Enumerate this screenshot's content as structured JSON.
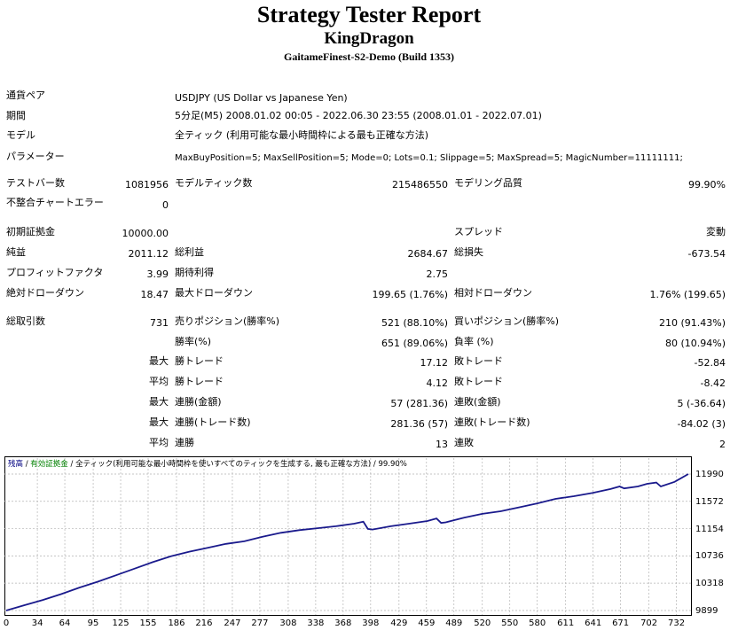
{
  "header": {
    "title": "Strategy Tester Report",
    "ea_name": "KingDragon",
    "server": "GaitameFinest-S2-Demo (Build 1353)"
  },
  "info": {
    "symbol_label": "通貨ペア",
    "symbol_value": "USDJPY (US Dollar vs Japanese Yen)",
    "period_label": "期間",
    "period_value": "5分足(M5) 2008.01.02 00:05 - 2022.06.30 23:55 (2008.01.01 - 2022.07.01)",
    "model_label": "モデル",
    "model_value": "全ティック (利用可能な最小時間枠による最も正確な方法)",
    "params_label": "パラメーター",
    "params_value": "MaxBuyPosition=5; MaxSellPosition=5; Mode=0; Lots=0.1; Slippage=5; MaxSpread=5; MagicNumber=11111111;"
  },
  "bars": {
    "bars_label": "テストバー数",
    "bars_value": "1081956",
    "ticks_label": "モデルティック数",
    "ticks_value": "215486550",
    "quality_label": "モデリング品質",
    "quality_value": "99.90%",
    "mismatch_label": "不整合チャートエラー",
    "mismatch_value": "0"
  },
  "results": {
    "deposit_label": "初期証拠金",
    "deposit_value": "10000.00",
    "spread_label": "スプレッド",
    "spread_value": "変動",
    "net_label": "純益",
    "net_value": "2011.12",
    "gross_profit_label": "総利益",
    "gross_profit_value": "2684.67",
    "gross_loss_label": "総損失",
    "gross_loss_value": "-673.54",
    "pf_label": "プロフィットファクタ",
    "pf_value": "3.99",
    "expected_label": "期待利得",
    "expected_value": "2.75",
    "abs_dd_label": "絶対ドローダウン",
    "abs_dd_value": "18.47",
    "max_dd_label": "最大ドローダウン",
    "max_dd_value": "199.65 (1.76%)",
    "rel_dd_label": "相対ドローダウン",
    "rel_dd_value": "1.76% (199.65)"
  },
  "trades": {
    "total_label": "総取引数",
    "total_value": "731",
    "short_label": "売りポジション(勝率%)",
    "short_value": "521 (88.10%)",
    "long_label": "買いポジション(勝率%)",
    "long_value": "210 (91.43%)",
    "win_label": "勝率(%)",
    "win_value": "651 (89.06%)",
    "loss_label": "負率 (%)",
    "loss_value": "80 (10.94%)",
    "max_word": "最大",
    "avg_word": "平均",
    "largest_win_label": "勝トレード",
    "largest_win_value": "17.12",
    "largest_loss_label": "敗トレード",
    "largest_loss_value": "-52.84",
    "avg_win_label": "勝トレード",
    "avg_win_value": "4.12",
    "avg_loss_label": "敗トレード",
    "avg_loss_value": "-8.42",
    "cons_wins_label": "連勝(金額)",
    "cons_wins_value": "57 (281.36)",
    "cons_losses_label": "連敗(金額)",
    "cons_losses_value": "5 (-36.64)",
    "cons_profit_label": "連勝(トレード数)",
    "cons_profit_value": "281.36 (57)",
    "cons_loss_label": "連敗(トレード数)",
    "cons_loss_value": "-84.02 (3)",
    "avg_cons_wins_label": "連勝",
    "avg_cons_wins_value": "13",
    "avg_cons_losses_label": "連敗",
    "avg_cons_losses_value": "2"
  },
  "colors": {
    "balance_line": "#1a1a8c",
    "equity_legend": "#008000",
    "grid": "#b4b4b4"
  },
  "chart_data": {
    "type": "line",
    "legend": {
      "balance": "残高",
      "sep1": " / ",
      "equity": "有効証拠金",
      "sep2": " / ",
      "model": "全ティック(利用可能な最小時間枠を使いすべてのティックを生成する, 最も正確な方法)",
      "sep3": " / ",
      "quality": "99.90%"
    },
    "x_ticks": [
      "0",
      "34",
      "64",
      "95",
      "125",
      "155",
      "186",
      "216",
      "247",
      "277",
      "308",
      "338",
      "368",
      "398",
      "429",
      "459",
      "489",
      "520",
      "550",
      "580",
      "611",
      "641",
      "671",
      "702",
      "732"
    ],
    "y_ticks": [
      "11990",
      "11572",
      "11154",
      "10736",
      "10318",
      "9899"
    ],
    "ylim": [
      9899,
      11990
    ],
    "xlim": [
      0,
      745
    ],
    "grid": true,
    "series": [
      {
        "x": [
          0,
          20,
          40,
          60,
          80,
          100,
          120,
          140,
          160,
          180,
          200,
          220,
          240,
          260,
          280,
          300,
          320,
          340,
          360,
          380,
          390,
          395,
          400,
          420,
          440,
          460,
          470,
          475,
          480,
          500,
          520,
          540,
          560,
          580,
          600,
          620,
          640,
          660,
          670,
          675,
          690,
          700,
          710,
          715,
          730,
          745
        ],
        "y": [
          9899,
          9980,
          10060,
          10150,
          10250,
          10340,
          10440,
          10540,
          10640,
          10730,
          10800,
          10860,
          10920,
          10960,
          11030,
          11090,
          11130,
          11160,
          11190,
          11230,
          11260,
          11150,
          11140,
          11190,
          11230,
          11270,
          11310,
          11240,
          11250,
          11320,
          11380,
          11420,
          11480,
          11540,
          11610,
          11650,
          11700,
          11760,
          11800,
          11770,
          11800,
          11840,
          11860,
          11800,
          11870,
          11990
        ]
      }
    ]
  }
}
